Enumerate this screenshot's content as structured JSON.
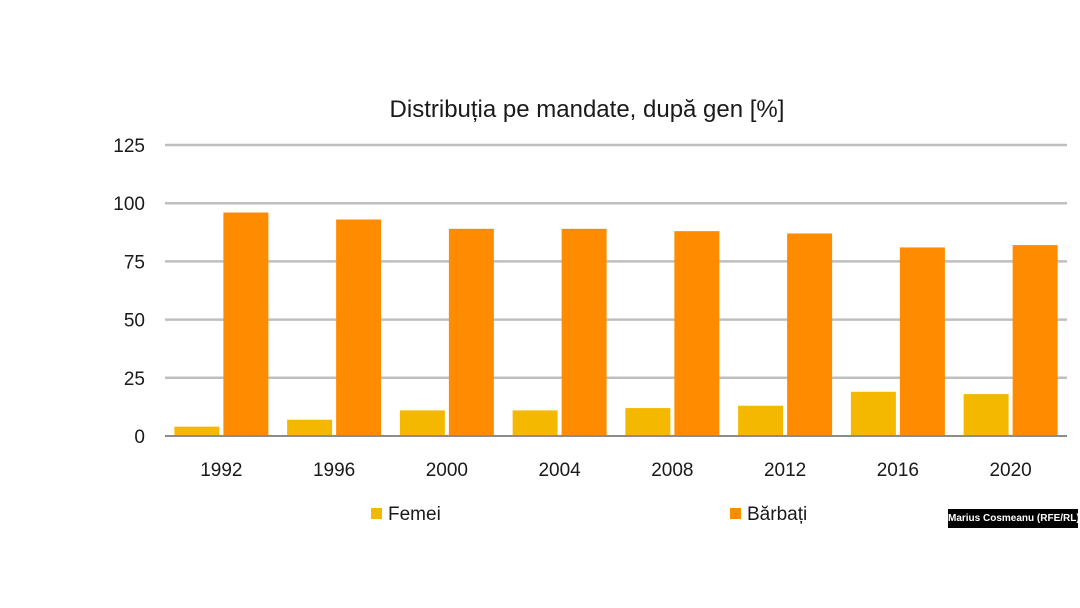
{
  "chart_data": {
    "type": "bar",
    "title": "Distribuția pe mandate, după gen [%]",
    "xlabel": "",
    "ylabel": "",
    "categories": [
      "1992",
      "1996",
      "2000",
      "2004",
      "2008",
      "2012",
      "2016",
      "2020"
    ],
    "series": [
      {
        "name": "Femei",
        "color": "#f5b800",
        "values": [
          4,
          7,
          11,
          11,
          12,
          13,
          19,
          18
        ]
      },
      {
        "name": "Bărbați",
        "color": "#ff8c00",
        "values": [
          96,
          93,
          89,
          89,
          88,
          87,
          81,
          82
        ]
      }
    ],
    "ylim": [
      0,
      125
    ],
    "yticks": [
      "0",
      "25",
      "50",
      "75",
      "100",
      "125"
    ],
    "grid": true,
    "legend_position": "bottom"
  },
  "credit": "Marius Cosmeanu (RFE/RL)",
  "colors": {
    "gridline": "#bfbfbf",
    "axis_line": "#8c8c8c",
    "text": "#1a1a1a"
  }
}
